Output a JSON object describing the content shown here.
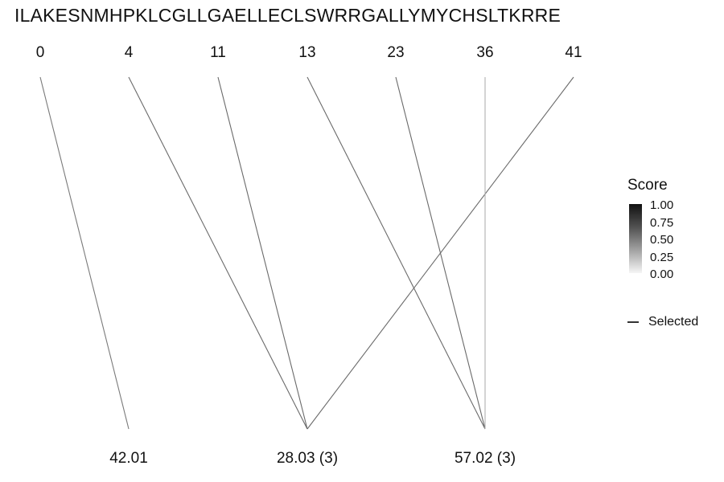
{
  "sequence": "ILAKESNMHPKLCGLLGAELLECLSWRRGALLYMYCHSLTKRRE",
  "top_nodes": [
    {
      "id": "t0",
      "label": "0"
    },
    {
      "id": "t4",
      "label": "4"
    },
    {
      "id": "t11",
      "label": "11"
    },
    {
      "id": "t13",
      "label": "13"
    },
    {
      "id": "t23",
      "label": "23"
    },
    {
      "id": "t36",
      "label": "36"
    },
    {
      "id": "t41",
      "label": "41"
    }
  ],
  "bottom_nodes": [
    {
      "id": "b1",
      "label": "42.01"
    },
    {
      "id": "b2",
      "label": "28.03 (3)"
    },
    {
      "id": "b3",
      "label": "57.02 (3)"
    }
  ],
  "edges": [
    {
      "from": "t0",
      "to": "b1",
      "color": "#7a7a7a"
    },
    {
      "from": "t4",
      "to": "b2",
      "color": "#6a6a6a"
    },
    {
      "from": "t11",
      "to": "b2",
      "color": "#6a6a6a"
    },
    {
      "from": "t41",
      "to": "b2",
      "color": "#6a6a6a"
    },
    {
      "from": "t13",
      "to": "b3",
      "color": "#6a6a6a"
    },
    {
      "from": "t23",
      "to": "b3",
      "color": "#6a6a6a"
    },
    {
      "from": "t36",
      "to": "b3",
      "color": "#b0b0b0"
    }
  ],
  "legend": {
    "title": "Score",
    "ticks": [
      "1.00",
      "0.75",
      "0.50",
      "0.25",
      "0.00"
    ],
    "selected_label": "Selected"
  }
}
